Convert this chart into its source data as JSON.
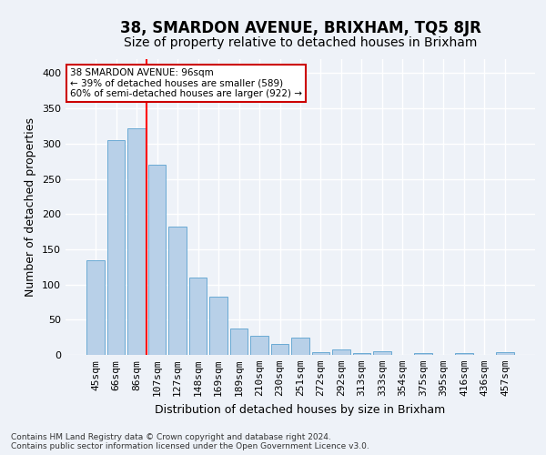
{
  "title": "38, SMARDON AVENUE, BRIXHAM, TQ5 8JR",
  "subtitle": "Size of property relative to detached houses in Brixham",
  "xlabel": "Distribution of detached houses by size in Brixham",
  "ylabel": "Number of detached properties",
  "categories": [
    "45sqm",
    "66sqm",
    "86sqm",
    "107sqm",
    "127sqm",
    "148sqm",
    "169sqm",
    "189sqm",
    "210sqm",
    "230sqm",
    "251sqm",
    "272sqm",
    "292sqm",
    "313sqm",
    "333sqm",
    "354sqm",
    "375sqm",
    "395sqm",
    "416sqm",
    "436sqm",
    "457sqm"
  ],
  "values": [
    135,
    305,
    322,
    270,
    182,
    110,
    83,
    38,
    27,
    15,
    24,
    4,
    8,
    3,
    5,
    0,
    2,
    0,
    2,
    0,
    4
  ],
  "bar_color": "#b8d0e8",
  "bar_edge_color": "#6aaad4",
  "red_line_index": 2.5,
  "annotation_title": "38 SMARDON AVENUE: 96sqm",
  "annotation_line1": "← 39% of detached houses are smaller (589)",
  "annotation_line2": "60% of semi-detached houses are larger (922) →",
  "annotation_box_color": "#ffffff",
  "annotation_box_edge": "#cc0000",
  "footer_line1": "Contains HM Land Registry data © Crown copyright and database right 2024.",
  "footer_line2": "Contains public sector information licensed under the Open Government Licence v3.0.",
  "ylim": [
    0,
    420
  ],
  "yticks": [
    0,
    50,
    100,
    150,
    200,
    250,
    300,
    350,
    400
  ],
  "background_color": "#eef2f8",
  "grid_color": "#ffffff",
  "title_fontsize": 12,
  "subtitle_fontsize": 10,
  "axis_label_fontsize": 9,
  "tick_fontsize": 8,
  "footer_fontsize": 6.5
}
